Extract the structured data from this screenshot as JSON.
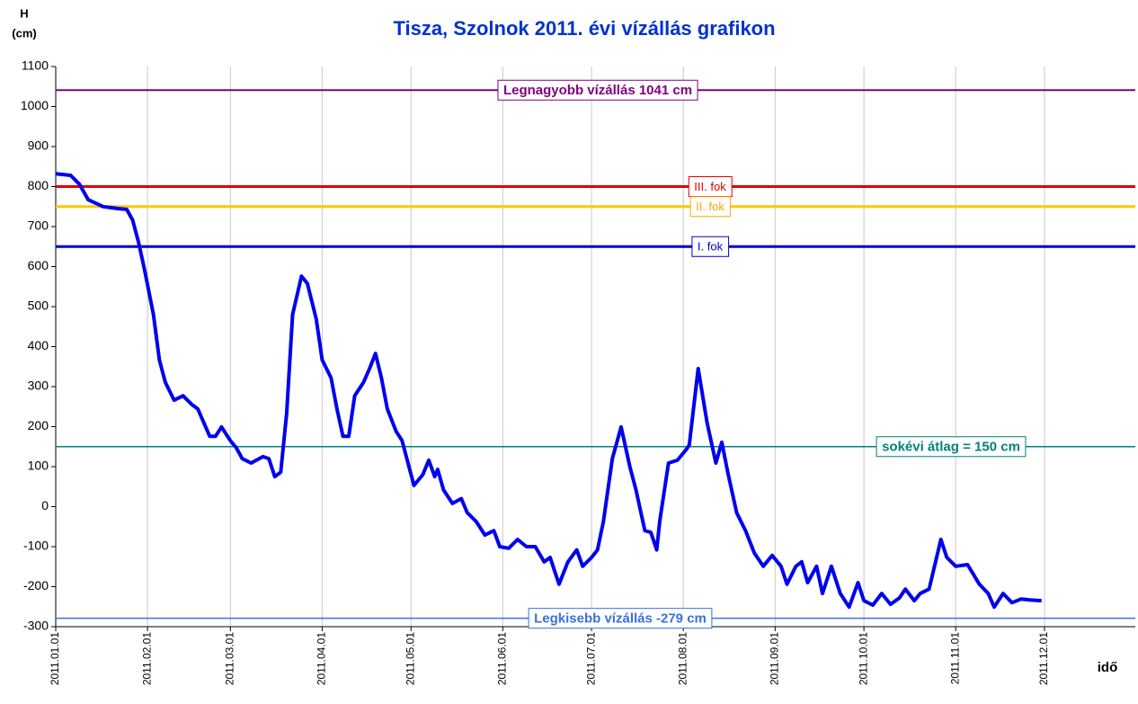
{
  "chart_data": {
    "type": "line",
    "title": "Tisza, Szolnok 2011. évi vízállás grafikon",
    "ylabel": [
      "H",
      "(cm)"
    ],
    "xlabel": "idő",
    "ylim": [
      -300,
      1100
    ],
    "yticks": [
      -300,
      -200,
      -100,
      0,
      100,
      200,
      300,
      400,
      500,
      600,
      700,
      800,
      900,
      1000,
      1100
    ],
    "xticks": [
      "2011.01.01",
      "2011.02.01",
      "2011.03.01",
      "2011.04.01",
      "2011.05.01",
      "2011.06.01",
      "2011.07.01",
      "2011.08.01",
      "2011.09.01",
      "2011.10.01",
      "2011.11.01",
      "2011.12.01"
    ],
    "grid": true,
    "reference_lines": [
      {
        "label": "Legnagyobb vízállás 1041 cm",
        "value": 1041,
        "color": "#800080"
      },
      {
        "label": "III. fok",
        "value": 800,
        "color": "#e00000"
      },
      {
        "label": "II. fok",
        "value": 750,
        "color": "#ffc800"
      },
      {
        "label": "I. fok",
        "value": 650,
        "color": "#0000d0"
      },
      {
        "label": "sokévi átlag = 150 cm",
        "value": 150,
        "color": "#008080"
      },
      {
        "label": "Legkisebb vízállás -279 cm",
        "value": -279,
        "color": "#3a6fe0"
      }
    ],
    "series": [
      {
        "color": "#0000ee",
        "x": [
          "2011.01.01",
          "2011.01.06",
          "2011.01.09",
          "2011.01.12",
          "2011.01.17",
          "2011.01.22",
          "2011.01.25",
          "2011.01.27",
          "2011.01.29",
          "2011.01.31",
          "2011.02.03",
          "2011.02.05",
          "2011.02.07",
          "2011.02.10",
          "2011.02.13",
          "2011.02.16",
          "2011.02.18",
          "2011.02.22",
          "2011.02.24",
          "2011.02.26",
          "2011.03.01",
          "2011.03.03",
          "2011.03.05",
          "2011.03.08",
          "2011.03.12",
          "2011.03.14",
          "2011.03.16",
          "2011.03.18",
          "2011.03.20",
          "2011.03.22",
          "2011.03.25",
          "2011.03.27",
          "2011.03.30",
          "2011.04.01",
          "2011.04.04",
          "2011.04.06",
          "2011.04.08",
          "2011.04.10",
          "2011.04.12",
          "2011.04.15",
          "2011.04.17",
          "2011.04.19",
          "2011.04.21",
          "2011.04.23",
          "2011.04.26",
          "2011.04.28",
          "2011.04.30",
          "2011.05.02",
          "2011.05.05",
          "2011.05.07",
          "2011.05.09",
          "2011.05.10",
          "2011.05.12",
          "2011.05.15",
          "2011.05.18",
          "2011.05.20",
          "2011.05.23",
          "2011.05.26",
          "2011.05.29",
          "2011.05.31",
          "2011.06.03",
          "2011.06.06",
          "2011.06.09",
          "2011.06.12",
          "2011.06.15",
          "2011.06.17",
          "2011.06.20",
          "2011.06.23",
          "2011.06.26",
          "2011.06.28",
          "2011.07.01",
          "2011.07.03",
          "2011.07.05",
          "2011.07.08",
          "2011.07.11",
          "2011.07.14",
          "2011.07.16",
          "2011.07.19",
          "2011.07.21",
          "2011.07.23",
          "2011.07.24",
          "2011.07.27",
          "2011.07.30",
          "2011.08.02",
          "2011.08.03",
          "2011.08.06",
          "2011.08.09",
          "2011.08.12",
          "2011.08.14",
          "2011.08.16",
          "2011.08.19",
          "2011.08.22",
          "2011.08.25",
          "2011.08.28",
          "2011.08.31",
          "2011.09.03",
          "2011.09.05",
          "2011.09.08",
          "2011.09.10",
          "2011.09.12",
          "2011.09.15",
          "2011.09.17",
          "2011.09.20",
          "2011.09.23",
          "2011.09.26",
          "2011.09.29",
          "2011.10.01",
          "2011.10.04",
          "2011.10.07",
          "2011.10.10",
          "2011.10.13",
          "2011.10.15",
          "2011.10.18",
          "2011.10.20",
          "2011.10.23",
          "2011.10.27",
          "2011.10.29",
          "2011.11.01",
          "2011.11.05",
          "2011.11.09",
          "2011.11.12",
          "2011.11.14",
          "2011.11.17",
          "2011.11.20",
          "2011.11.23",
          "2011.11.26",
          "2011.11.30"
        ],
        "values": [
          832,
          828,
          806,
          767,
          750,
          745,
          743,
          716,
          660,
          592,
          480,
          367,
          311,
          266,
          277,
          255,
          244,
          176,
          176,
          199,
          165,
          147,
          120,
          109,
          125,
          120,
          75,
          86,
          233,
          480,
          576,
          558,
          469,
          367,
          322,
          244,
          176,
          176,
          277,
          311,
          345,
          383,
          322,
          244,
          188,
          165,
          109,
          53,
          80,
          116,
          75,
          93,
          42,
          8,
          20,
          -15,
          -37,
          -71,
          -60,
          -100,
          -104,
          -82,
          -100,
          -100,
          -138,
          -127,
          -194,
          -138,
          -108,
          -149,
          -127,
          -108,
          -37,
          120,
          199,
          98,
          42,
          -60,
          -64,
          -108,
          -37,
          109,
          116,
          143,
          154,
          345,
          210,
          109,
          161,
          86,
          -15,
          -60,
          -116,
          -149,
          -122,
          -149,
          -194,
          -149,
          -138,
          -190,
          -149,
          -217,
          -149,
          -217,
          -251,
          -190,
          -235,
          -246,
          -217,
          -244,
          -228,
          -206,
          -235,
          -217,
          -206,
          -82,
          -127,
          -149,
          -145,
          -194,
          -217,
          -251,
          -217,
          -240,
          -231,
          -233,
          -235
        ]
      }
    ]
  }
}
